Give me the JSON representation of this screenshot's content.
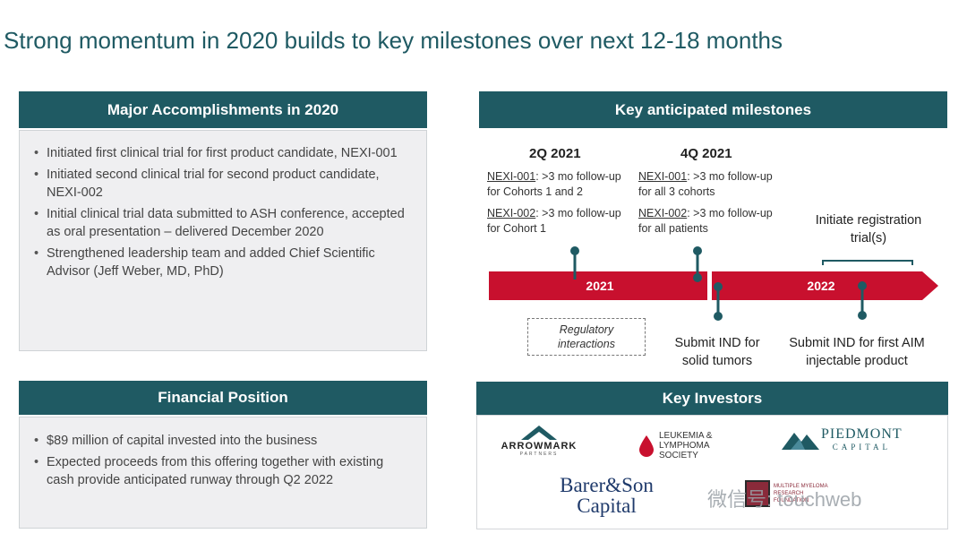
{
  "title": "Strong momentum in 2020 builds to key milestones over next 12-18 months",
  "accomplishments": {
    "header": "Major Accomplishments in 2020",
    "items": [
      "Initiated first clinical trial for first product candidate, NEXI-001",
      "Initiated second clinical trial for second product candidate, NEXI-002",
      "Initial clinical trial data submitted to ASH conference, accepted as oral presentation – delivered December 2020",
      "Strengthened leadership team and added Chief Scientific Advisor (Jeff Weber, MD, PhD)"
    ]
  },
  "financial": {
    "header": "Financial Position",
    "items": [
      "$89 million of capital invested into the business",
      "Expected proceeds from this offering together with existing cash provide anticipated runway through Q2 2022"
    ]
  },
  "milestones": {
    "header": "Key anticipated milestones",
    "q1": {
      "label": "2Q 2021",
      "m1_name": "NEXI-001",
      "m1_text": ": >3 mo follow-up for Cohorts 1 and 2",
      "m2_name": "NEXI-002",
      "m2_text": ": >3 mo follow-up for Cohort 1"
    },
    "q2": {
      "label": "4Q 2021",
      "m1_name": "NEXI-001",
      "m1_text": ": >3 mo follow-up for all 3 cohorts",
      "m2_name": "NEXI-002",
      "m2_text": ": >3 mo follow-up for all patients"
    },
    "year1": "2021",
    "year2": "2022",
    "registration": "Initiate registration trial(s)",
    "regulatory": "Regulatory interactions",
    "ind_solid": "Submit IND for solid tumors",
    "ind_aim": "Submit IND for first AIM injectable product",
    "bar_color": "#c8102e",
    "pin_color": "#1f5a63"
  },
  "investors": {
    "header": "Key Investors",
    "arrowmark": "ARROWMARK",
    "arrowmark_sub": "PARTNERS",
    "lls": "LEUKEMIA & LYMPHOMA SOCIETY",
    "piedmont": "PIEDMONT",
    "piedmont_sub": "CAPITAL",
    "barer_line1": "Barer&Son",
    "barer_line2": "Capital",
    "mm": "MULTIPLE MYELOMA RESEARCH FOUNDATION"
  },
  "watermark": "微信号: touchweb",
  "theme_color": "#1f5a63"
}
